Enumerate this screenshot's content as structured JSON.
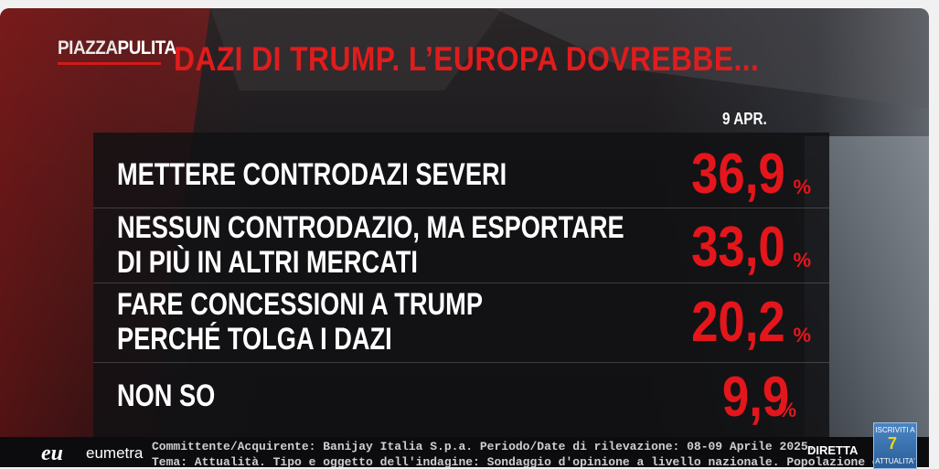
{
  "brand": {
    "logo_part1": "PIAZZA",
    "logo_part2": "PULITA"
  },
  "title": "DAZI DI TRUMP. L’EUROPA DOVREBBE...",
  "date_header": "9 APR.",
  "rows": [
    {
      "label_line1": "METTERE CONTRODAZI SEVERI",
      "label_line2": "",
      "value": "36,9",
      "unit": "%"
    },
    {
      "label_line1": "NESSUN CONTRODAZIO, MA ESPORTARE",
      "label_line2": "DI PIÙ IN ALTRI MERCATI",
      "value": "33,0",
      "unit": "%"
    },
    {
      "label_line1": "FARE CONCESSIONI A TRUMP",
      "label_line2": "PERCHÉ TOLGA I DAZI",
      "value": "20,2",
      "unit": "%"
    },
    {
      "label_line1": "NON SO",
      "label_line2": "",
      "value": "9,9",
      "unit": "%"
    }
  ],
  "footer": {
    "logo": "eu",
    "logo_name": "eumetra",
    "line1": "Committente/Acquirente: Banijay Italia S.p.a. Periodo/Date di rilevazione: 08-09 Aprile 2025.",
    "line2": "Tema: Attualità. Tipo e oggetto dell'indagine: Sondaggio d'opinione a livello nazionale. Popolazione di",
    "live_label": "DIRETTA"
  },
  "channel_badge": {
    "top": "ISCRIVITI A",
    "number": "7",
    "bottom": "ATTUALITA'"
  },
  "colors": {
    "accent_red": "#e4161c",
    "title_red": "#e01c1c",
    "panel": "#121214"
  }
}
